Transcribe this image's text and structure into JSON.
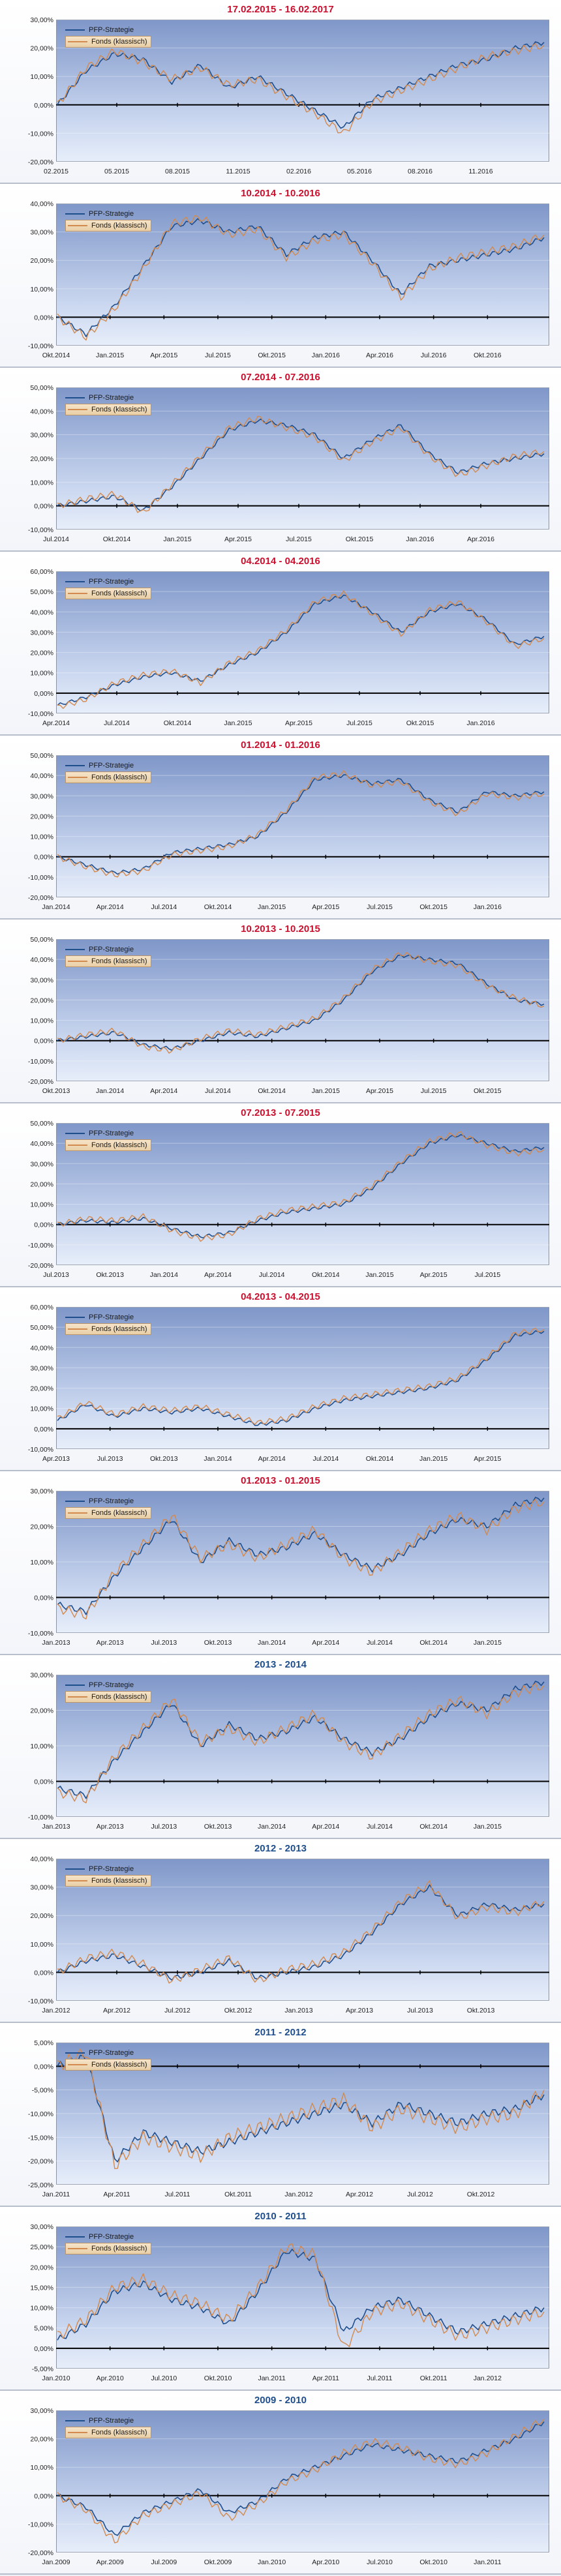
{
  "legend": {
    "pfp": "PFP-Strategie",
    "fund": "Fonds (klassisch)"
  },
  "colors": {
    "pfp": "#1f4e8c",
    "fund": "#d38a4f",
    "zero_line": "#000000",
    "title_red": "#c8102e",
    "title_blue": "#1f4e8c"
  },
  "chart_data": [
    {
      "type": "line",
      "title": "17.02.2015 - 16.02.2017",
      "title_color": "red",
      "yticks": [
        "30,00%",
        "20,00%",
        "10,00%",
        "0,00%",
        "-10,00%",
        "-20,00%"
      ],
      "ylim": [
        -20,
        30
      ],
      "xticks": [
        "02.2015",
        "05.2015",
        "08.2015",
        "11.2015",
        "02.2016",
        "05.2016",
        "08.2016",
        "11.2016"
      ],
      "series": [
        {
          "name": "PFP-Strategie",
          "values": [
            0,
            12,
            18,
            16,
            8,
            14,
            6,
            10,
            4,
            -2,
            -8,
            2,
            6,
            10,
            14,
            16,
            20,
            22
          ]
        },
        {
          "name": "Fonds (klassisch)",
          "values": [
            0,
            13,
            19,
            15,
            9,
            13,
            7,
            9,
            3,
            -3,
            -10,
            1,
            5,
            9,
            13,
            17,
            19,
            21
          ]
        }
      ]
    },
    {
      "type": "line",
      "title": "10.2014 - 10.2016",
      "title_color": "red",
      "yticks": [
        "40,00%",
        "30,00%",
        "20,00%",
        "10,00%",
        "0,00%",
        "-10,00%"
      ],
      "ylim": [
        -10,
        40
      ],
      "xticks": [
        "Okt.2014",
        "Jan.2015",
        "Apr.2015",
        "Jul.2015",
        "Okt.2015",
        "Jan.2016",
        "Apr.2016",
        "Jul.2016",
        "Okt.2016"
      ],
      "series": [
        {
          "name": "PFP-Strategie",
          "values": [
            0,
            -6,
            4,
            18,
            32,
            34,
            30,
            32,
            22,
            28,
            30,
            20,
            8,
            18,
            20,
            22,
            24,
            28
          ]
        },
        {
          "name": "Fonds (klassisch)",
          "values": [
            0,
            -7,
            3,
            17,
            33,
            35,
            29,
            31,
            21,
            27,
            29,
            19,
            7,
            17,
            21,
            23,
            25,
            29
          ]
        }
      ]
    },
    {
      "type": "line",
      "title": "07.2014 - 07.2016",
      "title_color": "red",
      "yticks": [
        "50,00%",
        "40,00%",
        "30,00%",
        "20,00%",
        "10,00%",
        "0,00%",
        "-10,00%"
      ],
      "ylim": [
        -10,
        50
      ],
      "xticks": [
        "Jul.2014",
        "Okt.2014",
        "Jan.2015",
        "Apr.2015",
        "Jul.2015",
        "Okt.2015",
        "Jan.2016",
        "Apr.2016"
      ],
      "series": [
        {
          "name": "PFP-Strategie",
          "values": [
            0,
            2,
            4,
            -2,
            8,
            20,
            32,
            36,
            34,
            30,
            20,
            28,
            34,
            22,
            14,
            18,
            20,
            22
          ]
        },
        {
          "name": "Fonds (klassisch)",
          "values": [
            0,
            3,
            5,
            -3,
            9,
            21,
            33,
            37,
            33,
            29,
            19,
            27,
            33,
            21,
            13,
            17,
            21,
            23
          ]
        }
      ]
    },
    {
      "type": "line",
      "title": "04.2014 - 04.2016",
      "title_color": "red",
      "yticks": [
        "60,00%",
        "50,00%",
        "40,00%",
        "30,00%",
        "20,00%",
        "10,00%",
        "0,00%",
        "-10,00%"
      ],
      "ylim": [
        -10,
        60
      ],
      "xticks": [
        "Apr.2014",
        "Jul.2014",
        "Okt.2014",
        "Jan.2015",
        "Apr.2015",
        "Jul.2015",
        "Okt.2015",
        "Jan.2016"
      ],
      "series": [
        {
          "name": "PFP-Strategie",
          "values": [
            -6,
            -2,
            4,
            8,
            10,
            6,
            14,
            20,
            30,
            44,
            48,
            40,
            30,
            40,
            44,
            36,
            24,
            28
          ]
        },
        {
          "name": "Fonds (klassisch)",
          "values": [
            -7,
            -3,
            5,
            9,
            11,
            5,
            15,
            21,
            31,
            45,
            49,
            39,
            29,
            41,
            45,
            35,
            23,
            27
          ]
        }
      ]
    },
    {
      "type": "line",
      "title": "01.2014 - 01.2016",
      "title_color": "red",
      "yticks": [
        "50,00%",
        "40,00%",
        "30,00%",
        "20,00%",
        "10,00%",
        "0,00%",
        "-10,00%",
        "-20,00%"
      ],
      "ylim": [
        -20,
        50
      ],
      "xticks": [
        "Jan.2014",
        "Apr.2014",
        "Jul.2014",
        "Okt.2014",
        "Jan.2015",
        "Apr.2015",
        "Jul.2015",
        "Okt.2015",
        "Jan.2016"
      ],
      "series": [
        {
          "name": "PFP-Strategie",
          "values": [
            0,
            -4,
            -8,
            -6,
            2,
            4,
            6,
            10,
            22,
            38,
            40,
            36,
            38,
            28,
            22,
            32,
            30,
            32
          ]
        },
        {
          "name": "Fonds (klassisch)",
          "values": [
            0,
            -5,
            -9,
            -7,
            1,
            3,
            5,
            11,
            23,
            39,
            41,
            35,
            37,
            27,
            21,
            31,
            29,
            31
          ]
        }
      ]
    },
    {
      "type": "line",
      "title": "10.2013 - 10.2015",
      "title_color": "red",
      "yticks": [
        "50,00%",
        "40,00%",
        "30,00%",
        "20,00%",
        "10,00%",
        "0,00%",
        "-10,00%",
        "-20,00%"
      ],
      "ylim": [
        -20,
        50
      ],
      "xticks": [
        "Okt.2013",
        "Jan.2014",
        "Apr.2014",
        "Jul.2014",
        "Okt.2014",
        "Jan.2015",
        "Apr.2015",
        "Jul.2015",
        "Okt.2015"
      ],
      "series": [
        {
          "name": "PFP-Strategie",
          "values": [
            0,
            2,
            4,
            -2,
            -4,
            0,
            4,
            2,
            6,
            10,
            20,
            34,
            42,
            40,
            38,
            28,
            20,
            18
          ]
        },
        {
          "name": "Fonds (klassisch)",
          "values": [
            0,
            3,
            5,
            -3,
            -5,
            1,
            5,
            3,
            7,
            11,
            21,
            35,
            43,
            39,
            37,
            27,
            21,
            17
          ]
        }
      ]
    },
    {
      "type": "line",
      "title": "07.2013 - 07.2015",
      "title_color": "red",
      "yticks": [
        "50,00%",
        "40,00%",
        "30,00%",
        "20,00%",
        "10,00%",
        "0,00%",
        "-10,00%",
        "-20,00%"
      ],
      "ylim": [
        -20,
        50
      ],
      "xticks": [
        "Jul.2013",
        "Okt.2013",
        "Jan.2014",
        "Apr.2014",
        "Jul.2014",
        "Okt.2014",
        "Jan.2015",
        "Apr.2015",
        "Jul.2015"
      ],
      "series": [
        {
          "name": "PFP-Strategie",
          "values": [
            0,
            2,
            1,
            3,
            -2,
            -6,
            -4,
            2,
            6,
            8,
            10,
            18,
            30,
            40,
            44,
            40,
            36,
            38
          ]
        },
        {
          "name": "Fonds (klassisch)",
          "values": [
            0,
            3,
            2,
            4,
            -3,
            -7,
            -5,
            3,
            7,
            9,
            11,
            19,
            31,
            41,
            45,
            39,
            35,
            37
          ]
        }
      ]
    },
    {
      "type": "line",
      "title": "04.2013 - 04.2015",
      "title_color": "red",
      "yticks": [
        "60,00%",
        "50,00%",
        "40,00%",
        "30,00%",
        "20,00%",
        "10,00%",
        "0,00%",
        "-10,00%"
      ],
      "ylim": [
        -10,
        60
      ],
      "xticks": [
        "Apr.2013",
        "Jul.2013",
        "Okt.2013",
        "Jan.2014",
        "Apr.2014",
        "Jul.2014",
        "Okt.2014",
        "Jan.2015",
        "Apr.2015"
      ],
      "series": [
        {
          "name": "PFP-Strategie",
          "values": [
            4,
            12,
            6,
            10,
            8,
            10,
            6,
            2,
            4,
            10,
            14,
            16,
            18,
            20,
            24,
            34,
            46,
            48
          ]
        },
        {
          "name": "Fonds (klassisch)",
          "values": [
            5,
            13,
            7,
            11,
            9,
            11,
            7,
            3,
            5,
            11,
            15,
            17,
            19,
            21,
            25,
            35,
            47,
            49
          ]
        }
      ]
    },
    {
      "type": "line",
      "title": "01.2013 - 01.2015",
      "title_color": "red",
      "yticks": [
        "30,00%",
        "20,00%",
        "10,00%",
        "0,00%",
        "-10,00%"
      ],
      "ylim": [
        -10,
        30
      ],
      "xticks": [
        "Jan.2013",
        "Apr.2013",
        "Jul.2013",
        "Okt.2013",
        "Jan.2014",
        "Apr.2014",
        "Jul.2014",
        "Okt.2014",
        "Jan.2015"
      ],
      "series": [
        {
          "name": "PFP-Strategie",
          "values": [
            -2,
            -4,
            6,
            14,
            22,
            10,
            16,
            12,
            14,
            18,
            12,
            8,
            12,
            18,
            22,
            20,
            26,
            28
          ]
        },
        {
          "name": "Fonds (klassisch)",
          "values": [
            -3,
            -5,
            7,
            15,
            23,
            11,
            15,
            11,
            15,
            19,
            11,
            7,
            13,
            19,
            23,
            19,
            25,
            27
          ]
        }
      ]
    },
    {
      "type": "line",
      "title": "2013 - 2014",
      "title_color": "blue",
      "yticks": [
        "30,00%",
        "20,00%",
        "10,00%",
        "0,00%",
        "-10,00%"
      ],
      "ylim": [
        -10,
        30
      ],
      "xticks": [
        "Jan.2013",
        "Apr.2013",
        "Jul.2013",
        "Okt.2013",
        "Jan.2014",
        "Apr.2014",
        "Jul.2014",
        "Okt.2014",
        "Jan.2015"
      ],
      "series": [
        {
          "name": "PFP-Strategie",
          "values": [
            -2,
            -4,
            6,
            14,
            22,
            10,
            16,
            12,
            14,
            18,
            12,
            8,
            12,
            18,
            22,
            20,
            26,
            28
          ]
        },
        {
          "name": "Fonds (klassisch)",
          "values": [
            -3,
            -5,
            7,
            15,
            23,
            11,
            15,
            11,
            15,
            19,
            11,
            7,
            13,
            19,
            23,
            19,
            25,
            27
          ]
        }
      ]
    },
    {
      "type": "line",
      "title": "2012 - 2013",
      "title_color": "blue",
      "yticks": [
        "40,00%",
        "30,00%",
        "20,00%",
        "10,00%",
        "0,00%",
        "-10,00%"
      ],
      "ylim": [
        -10,
        40
      ],
      "xticks": [
        "Jan.2012",
        "Apr.2012",
        "Jul.2012",
        "Okt.2012",
        "Jan.2013",
        "Apr.2013",
        "Jul.2013",
        "Okt.2013"
      ],
      "series": [
        {
          "name": "PFP-Strategie",
          "values": [
            0,
            4,
            6,
            2,
            -2,
            0,
            4,
            -2,
            0,
            2,
            6,
            14,
            24,
            30,
            20,
            24,
            22,
            24
          ]
        },
        {
          "name": "Fonds (klassisch)",
          "values": [
            0,
            5,
            7,
            3,
            -3,
            1,
            5,
            -3,
            1,
            3,
            7,
            15,
            25,
            31,
            19,
            23,
            21,
            25
          ]
        }
      ]
    },
    {
      "type": "line",
      "title": "2011 - 2012",
      "title_color": "blue",
      "yticks": [
        "5,00%",
        "0,00%",
        "-5,00%",
        "-10,00%",
        "-15,00%",
        "-20,00%",
        "-25,00%"
      ],
      "ylim": [
        -25,
        5
      ],
      "xticks": [
        "Jan.2011",
        "Apr.2011",
        "Jul.2011",
        "Okt.2011",
        "Jan.2012",
        "Apr.2012",
        "Jul.2012",
        "Okt.2012"
      ],
      "series": [
        {
          "name": "PFP-Strategie",
          "values": [
            0,
            2,
            -20,
            -14,
            -16,
            -18,
            -16,
            -14,
            -12,
            -10,
            -8,
            -12,
            -8,
            -10,
            -12,
            -10,
            -9,
            -6
          ]
        },
        {
          "name": "Fonds (klassisch)",
          "values": [
            0,
            3,
            -21,
            -15,
            -17,
            -19,
            -15,
            -13,
            -11,
            -9,
            -7,
            -13,
            -9,
            -11,
            -13,
            -11,
            -10,
            -5
          ]
        }
      ]
    },
    {
      "type": "line",
      "title": "2010 - 2011",
      "title_color": "blue",
      "yticks": [
        "30,00%",
        "25,00%",
        "20,00%",
        "15,00%",
        "10,00%",
        "5,00%",
        "0,00%",
        "-5,00%"
      ],
      "ylim": [
        -5,
        30
      ],
      "xticks": [
        "Jan.2010",
        "Apr.2010",
        "Jul.2010",
        "Okt.2010",
        "Jan.2011",
        "Apr.2011",
        "Jul.2011",
        "Okt.2011",
        "Jan.2012"
      ],
      "series": [
        {
          "name": "PFP-Strategie",
          "values": [
            2,
            6,
            14,
            16,
            12,
            10,
            6,
            14,
            24,
            22,
            4,
            10,
            12,
            8,
            4,
            6,
            8,
            10
          ]
        },
        {
          "name": "Fonds (klassisch)",
          "values": [
            3,
            7,
            15,
            17,
            13,
            11,
            7,
            15,
            25,
            23,
            0,
            9,
            11,
            7,
            3,
            5,
            7,
            9
          ]
        }
      ]
    },
    {
      "type": "line",
      "title": "2009 - 2010",
      "title_color": "blue",
      "yticks": [
        "30,00%",
        "20,00%",
        "10,00%",
        "0,00%",
        "-10,00%",
        "-20,00%"
      ],
      "ylim": [
        -20,
        30
      ],
      "xticks": [
        "Jan.2009",
        "Apr.2009",
        "Jul.2009",
        "Okt.2009",
        "Jan.2010",
        "Apr.2010",
        "Jul.2010",
        "Okt.2010",
        "Jan.2011"
      ],
      "series": [
        {
          "name": "PFP-Strategie",
          "values": [
            0,
            -4,
            -14,
            -6,
            -2,
            2,
            -6,
            -2,
            6,
            10,
            14,
            18,
            16,
            14,
            12,
            16,
            20,
            26
          ]
        },
        {
          "name": "Fonds (klassisch)",
          "values": [
            0,
            -5,
            -16,
            -7,
            -3,
            1,
            -8,
            -3,
            5,
            9,
            15,
            19,
            17,
            13,
            11,
            15,
            21,
            27
          ]
        }
      ]
    }
  ]
}
